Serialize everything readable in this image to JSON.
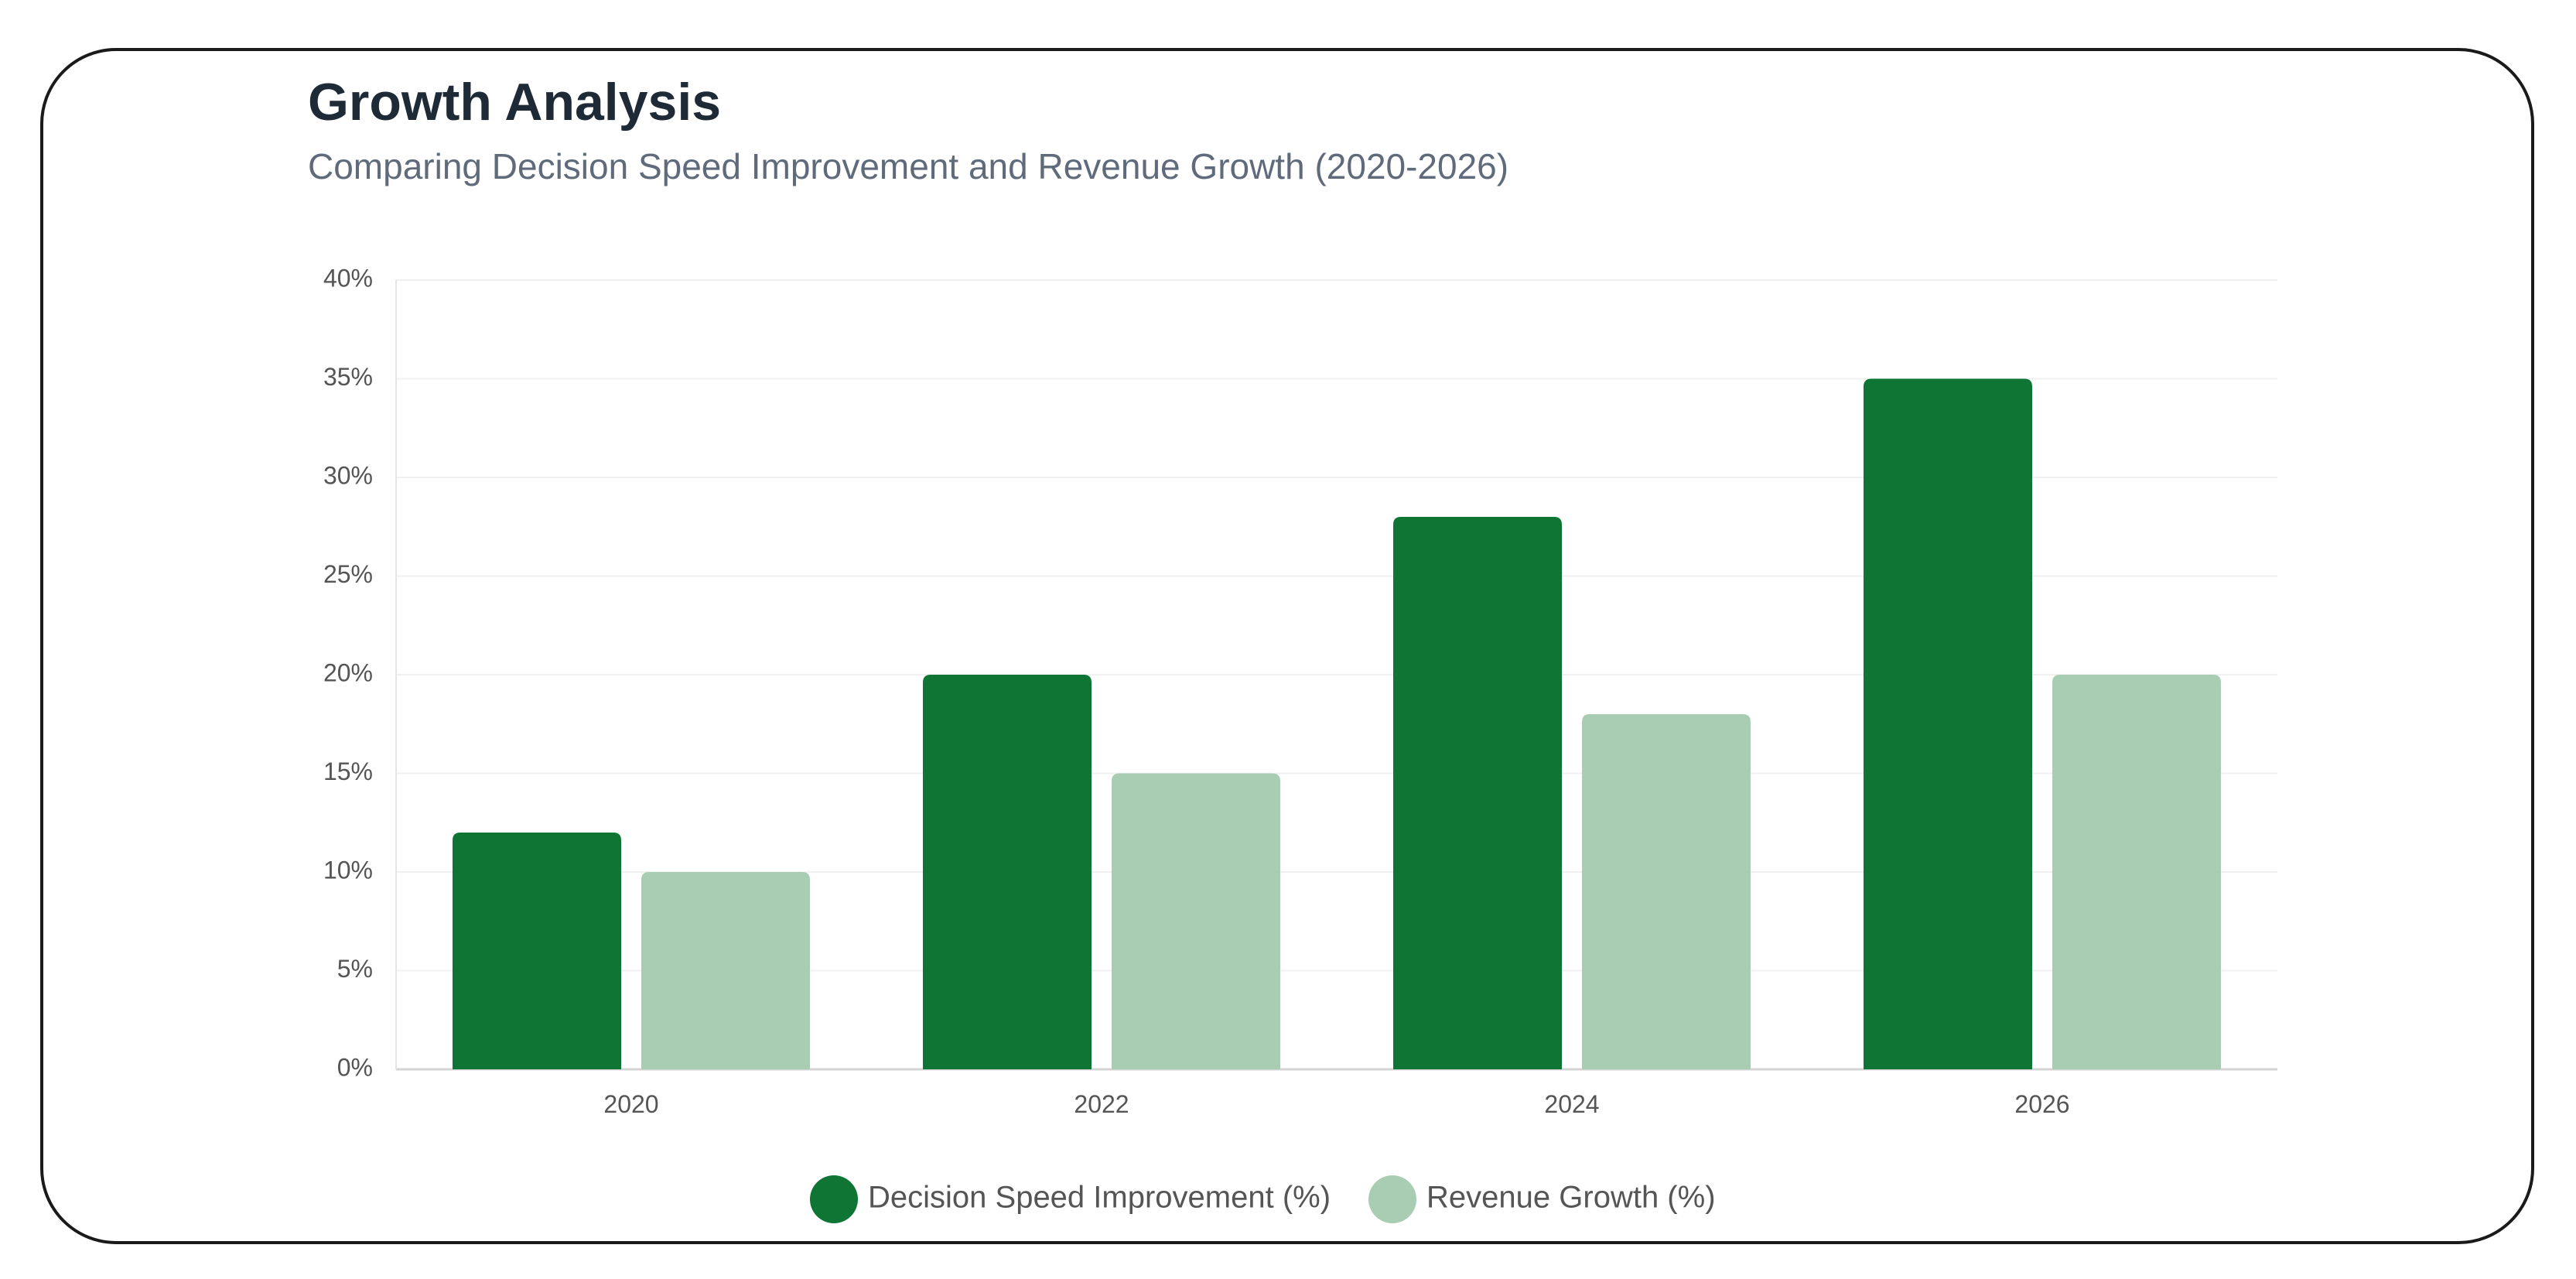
{
  "header": {
    "title": "Growth Analysis",
    "subtitle": "Comparing Decision Speed Improvement and Revenue Growth (2020-2026)"
  },
  "chart_data": {
    "type": "bar",
    "categories": [
      "2020",
      "2022",
      "2024",
      "2026"
    ],
    "series": [
      {
        "name": "Decision Speed Improvement (%)",
        "values": [
          12,
          20,
          28,
          35
        ],
        "color": "#0e7534"
      },
      {
        "name": "Revenue Growth (%)",
        "values": [
          10,
          15,
          18,
          20
        ],
        "color": "#a8cdb2"
      }
    ],
    "ylim": [
      0,
      40
    ],
    "yticks": [
      0,
      5,
      10,
      15,
      20,
      25,
      30,
      35,
      40
    ],
    "ytick_suffix": "%",
    "grid": true,
    "legend_position": "bottom-center"
  }
}
